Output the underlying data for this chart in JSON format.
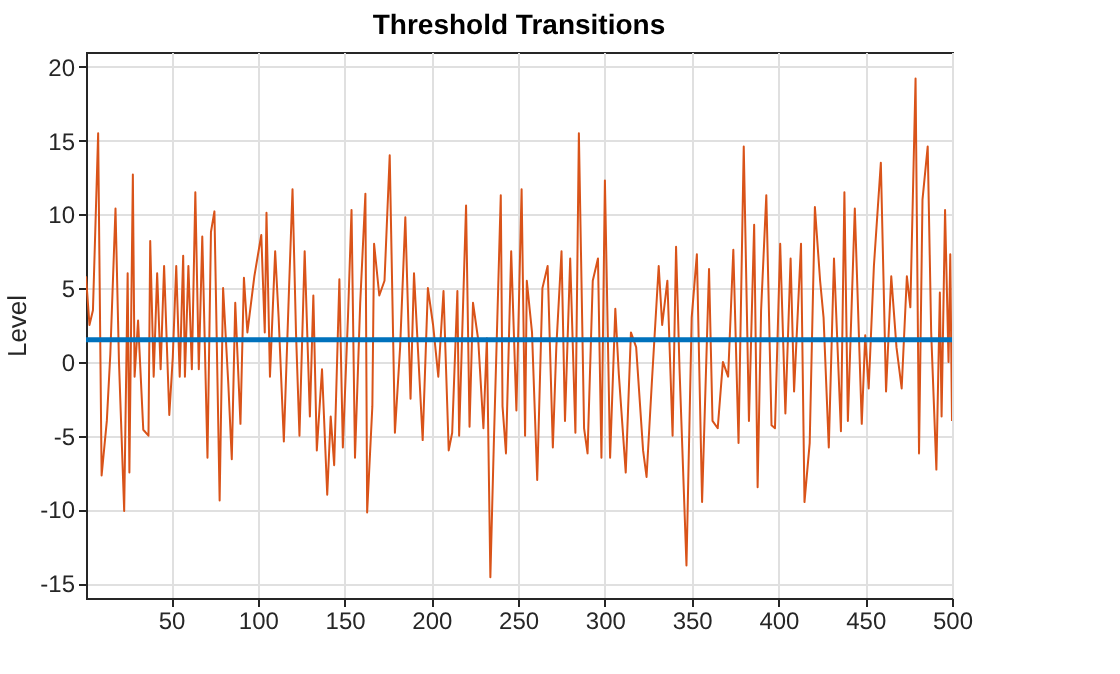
{
  "chart_data": {
    "type": "line",
    "title": "Threshold Transitions",
    "ylabel": "Level",
    "x": [
      1,
      3,
      5,
      8,
      10,
      13,
      15,
      18,
      20,
      23,
      25,
      26,
      28,
      29,
      31,
      34,
      37,
      38,
      40,
      42,
      44,
      46,
      49,
      51,
      53,
      55,
      57,
      58,
      60,
      62,
      64,
      66,
      68,
      71,
      73,
      75,
      78,
      80,
      83,
      85,
      87,
      90,
      92,
      94,
      98,
      102,
      104,
      105,
      107,
      110,
      112,
      115,
      118,
      120,
      122,
      124,
      127,
      130,
      132,
      134,
      137,
      140,
      142,
      144,
      147,
      149,
      152,
      154,
      156,
      159,
      162,
      163,
      166,
      167,
      170,
      173,
      176,
      179,
      182,
      185,
      188,
      190,
      195,
      198,
      201,
      204,
      207,
      210,
      212,
      215,
      216,
      220,
      222,
      224,
      227,
      230,
      232,
      234,
      236,
      240,
      241,
      243,
      246,
      249,
      252,
      254,
      255,
      258,
      261,
      264,
      267,
      270,
      272,
      275,
      277,
      280,
      283,
      285,
      288,
      290,
      293,
      296,
      298,
      300,
      303,
      306,
      308,
      312,
      315,
      318,
      322,
      324,
      327,
      331,
      333,
      336,
      339,
      341,
      343,
      347,
      350,
      353,
      356,
      360,
      362,
      365,
      368,
      371,
      374,
      377,
      380,
      383,
      386,
      388,
      390,
      393,
      396,
      398,
      401,
      404,
      407,
      409,
      413,
      415,
      418,
      421,
      424,
      426,
      429,
      432,
      436,
      438,
      440,
      444,
      448,
      450,
      452,
      455,
      459,
      462,
      465,
      468,
      471,
      474,
      476,
      479,
      481,
      483,
      486,
      488,
      491,
      493,
      494,
      496,
      498,
      499,
      500
    ],
    "series": [
      {
        "color": "#d95319",
        "values": [
          5.8,
          2.5,
          3.5,
          15.5,
          -7.7,
          -4,
          0.5,
          10.4,
          0,
          -10.1,
          6,
          -7.5,
          12.7,
          -1,
          2.8,
          -4.6,
          -5,
          8.2,
          -1,
          6,
          -0.5,
          6.5,
          -3.6,
          0.3,
          6.5,
          -1,
          7.2,
          -1,
          6.5,
          -0.5,
          11.5,
          -0.5,
          8.5,
          -6.5,
          8.8,
          10.2,
          -9.4,
          5,
          -1.5,
          -6.6,
          4,
          -4.2,
          5.7,
          2,
          5.8,
          8.6,
          2,
          10.1,
          -1,
          7.5,
          3,
          -5.4,
          5,
          11.7,
          2,
          -5,
          7.5,
          -3.7,
          4.5,
          -6,
          -0.5,
          -9,
          -3.7,
          -7,
          5.6,
          -5.8,
          3.2,
          10.3,
          -6.5,
          4,
          11.4,
          -10.2,
          -3,
          8,
          4.5,
          5.5,
          14,
          -4.8,
          1,
          9.8,
          -2.5,
          6,
          -5.3,
          5,
          2.5,
          -1,
          4.8,
          -6,
          -4.8,
          4.8,
          -5,
          10.6,
          -4.4,
          4,
          1.5,
          -4.5,
          1.6,
          -14.6,
          -5.5,
          11.3,
          -3,
          -6.2,
          7.5,
          -3.3,
          11.7,
          -5,
          5.5,
          2,
          -8,
          5,
          6.5,
          -5.8,
          1,
          7.5,
          -4,
          7,
          -4.8,
          15.5,
          -4.5,
          -6.2,
          5.5,
          7,
          -6.5,
          12.3,
          -6.5,
          3.6,
          -0.8,
          -7.5,
          2,
          1,
          -6,
          -7.8,
          -1.5,
          6.5,
          2.5,
          5.5,
          -5,
          7.8,
          -0.5,
          -13.8,
          3,
          7.3,
          -9.5,
          6.3,
          -4,
          -4.5,
          0,
          -1,
          7.6,
          -5.5,
          14.6,
          -4,
          9.3,
          -8.5,
          3.5,
          11.3,
          -4.3,
          -4.5,
          8,
          -3.5,
          7,
          -2,
          8,
          -9.5,
          -5.5,
          10.5,
          5.5,
          3,
          -5.8,
          7,
          -4.7,
          11.5,
          -4,
          10.4,
          -4.2,
          1.8,
          -1.8,
          6.5,
          13.5,
          -2,
          5.8,
          1,
          -1.8,
          5.8,
          3.7,
          19.2,
          -6.2,
          11,
          14.6,
          2,
          -7.3,
          4.7,
          -3.7,
          10.3,
          0,
          7.3,
          -4
        ]
      }
    ],
    "ref_lines": [
      {
        "axis": "y",
        "value": 1.5,
        "color": "#0072bd"
      }
    ],
    "xlim": [
      1,
      500
    ],
    "xticks": [
      50,
      100,
      150,
      200,
      250,
      300,
      350,
      400,
      450,
      500
    ],
    "ylim": [
      -16,
      21
    ],
    "yticks": [
      -15,
      -10,
      -5,
      0,
      5,
      10,
      15,
      20
    ],
    "grid": true
  }
}
